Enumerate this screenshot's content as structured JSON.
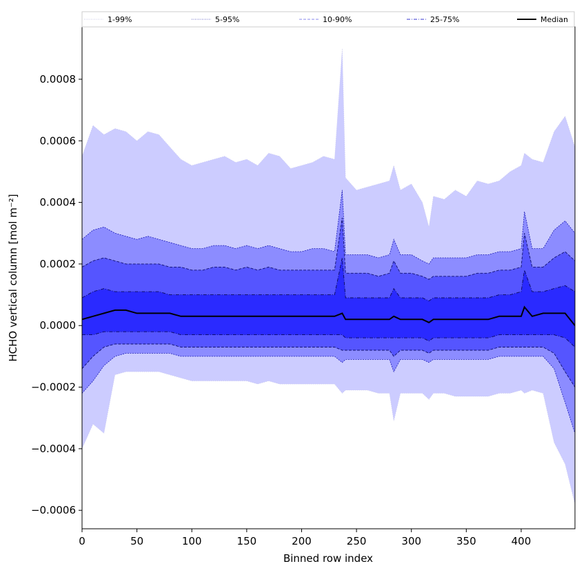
{
  "chart_data": {
    "type": "area",
    "title": "",
    "xlabel": "Binned row index",
    "ylabel": "HCHO vertical column [mol m⁻²]",
    "xlim": [
      0,
      449
    ],
    "ylim": [
      -0.00066,
      0.00097
    ],
    "xticks": [
      0,
      50,
      100,
      150,
      200,
      250,
      300,
      350,
      400
    ],
    "yticks": [
      -0.0006,
      -0.0004,
      -0.0002,
      0.0,
      0.0002,
      0.0004,
      0.0006,
      0.0008
    ],
    "ytick_labels": [
      "−0.0006",
      "−0.0004",
      "−0.0002",
      "0.0000",
      "0.0002",
      "0.0004",
      "0.0006",
      "0.0008"
    ],
    "grid": false,
    "legend_position": "top",
    "legend": [
      {
        "label": "1-99%",
        "style": "dotted",
        "color": "#c8c8e6"
      },
      {
        "label": "5-95%",
        "style": "dotted",
        "color": "#6a6ac8"
      },
      {
        "label": "10-90%",
        "style": "dashed",
        "color": "#8a8aee"
      },
      {
        "label": "25-75%",
        "style": "dashdot",
        "color": "#3a3ad0"
      },
      {
        "label": "Median",
        "style": "solid",
        "color": "#000000"
      }
    ],
    "band_colors": {
      "p1_99": "#ccccff",
      "p5_95": "#8c8cff",
      "p10_90": "#5555ff",
      "p25_75": "#2a2aff",
      "median": "#000000"
    },
    "x": [
      0,
      10,
      20,
      30,
      40,
      50,
      60,
      70,
      80,
      90,
      100,
      110,
      120,
      130,
      140,
      150,
      160,
      170,
      180,
      190,
      200,
      210,
      220,
      230,
      237,
      240,
      250,
      260,
      270,
      280,
      284,
      290,
      300,
      310,
      316,
      320,
      330,
      340,
      350,
      360,
      370,
      380,
      390,
      400,
      403,
      410,
      420,
      430,
      440,
      449
    ],
    "series": [
      {
        "name": "1-99%",
        "band": "upper",
        "values": [
          0.00055,
          0.00065,
          0.00062,
          0.00064,
          0.00063,
          0.0006,
          0.00063,
          0.00062,
          0.00058,
          0.00054,
          0.00052,
          0.00053,
          0.00054,
          0.00055,
          0.00053,
          0.00054,
          0.00052,
          0.00056,
          0.00055,
          0.00051,
          0.00052,
          0.00053,
          0.00055,
          0.00054,
          0.0009,
          0.00048,
          0.00044,
          0.00045,
          0.00046,
          0.00047,
          0.00052,
          0.00044,
          0.00046,
          0.0004,
          0.00032,
          0.00042,
          0.00041,
          0.00044,
          0.00042,
          0.00047,
          0.00046,
          0.00047,
          0.0005,
          0.00052,
          0.00056,
          0.00054,
          0.00053,
          0.00063,
          0.00068,
          0.00058
        ]
      },
      {
        "name": "5-95%",
        "band": "upper",
        "values": [
          0.00028,
          0.00031,
          0.00032,
          0.0003,
          0.00029,
          0.00028,
          0.00029,
          0.00028,
          0.00027,
          0.00026,
          0.00025,
          0.00025,
          0.00026,
          0.00026,
          0.00025,
          0.00026,
          0.00025,
          0.00026,
          0.00025,
          0.00024,
          0.00024,
          0.00025,
          0.00025,
          0.00024,
          0.00044,
          0.00023,
          0.00023,
          0.00023,
          0.00022,
          0.00023,
          0.00028,
          0.00023,
          0.00023,
          0.00021,
          0.0002,
          0.00022,
          0.00022,
          0.00022,
          0.00022,
          0.00023,
          0.00023,
          0.00024,
          0.00024,
          0.00025,
          0.00037,
          0.00025,
          0.00025,
          0.00031,
          0.00034,
          0.0003
        ]
      },
      {
        "name": "10-90%",
        "band": "upper",
        "values": [
          0.00019,
          0.00021,
          0.00022,
          0.00021,
          0.0002,
          0.0002,
          0.0002,
          0.0002,
          0.00019,
          0.00019,
          0.00018,
          0.00018,
          0.00019,
          0.00019,
          0.00018,
          0.00019,
          0.00018,
          0.00019,
          0.00018,
          0.00018,
          0.00018,
          0.00018,
          0.00018,
          0.00018,
          0.00035,
          0.00017,
          0.00017,
          0.00017,
          0.00016,
          0.00017,
          0.00021,
          0.00017,
          0.00017,
          0.00016,
          0.00015,
          0.00016,
          0.00016,
          0.00016,
          0.00016,
          0.00017,
          0.00017,
          0.00018,
          0.00018,
          0.00019,
          0.0003,
          0.00019,
          0.00019,
          0.00022,
          0.00024,
          0.00021
        ]
      },
      {
        "name": "25-75%",
        "band": "upper",
        "values": [
          9e-05,
          0.00011,
          0.00012,
          0.00011,
          0.00011,
          0.00011,
          0.00011,
          0.00011,
          0.0001,
          0.0001,
          0.0001,
          0.0001,
          0.0001,
          0.0001,
          0.0001,
          0.0001,
          0.0001,
          0.0001,
          0.0001,
          0.0001,
          0.0001,
          0.0001,
          0.0001,
          0.0001,
          0.00022,
          9e-05,
          9e-05,
          9e-05,
          9e-05,
          9e-05,
          0.00012,
          9e-05,
          9e-05,
          9e-05,
          8e-05,
          9e-05,
          9e-05,
          9e-05,
          9e-05,
          9e-05,
          9e-05,
          0.0001,
          0.0001,
          0.00011,
          0.00018,
          0.00011,
          0.00011,
          0.00012,
          0.00013,
          0.00011
        ]
      },
      {
        "name": "Median",
        "band": "median",
        "values": [
          2e-05,
          3e-05,
          4e-05,
          5e-05,
          5e-05,
          4e-05,
          4e-05,
          4e-05,
          4e-05,
          3e-05,
          3e-05,
          3e-05,
          3e-05,
          3e-05,
          3e-05,
          3e-05,
          3e-05,
          3e-05,
          3e-05,
          3e-05,
          3e-05,
          3e-05,
          3e-05,
          3e-05,
          4e-05,
          2e-05,
          2e-05,
          2e-05,
          2e-05,
          2e-05,
          3e-05,
          2e-05,
          2e-05,
          2e-05,
          1e-05,
          2e-05,
          2e-05,
          2e-05,
          2e-05,
          2e-05,
          2e-05,
          3e-05,
          3e-05,
          3e-05,
          6e-05,
          3e-05,
          4e-05,
          4e-05,
          4e-05,
          0.0
        ]
      },
      {
        "name": "25-75%",
        "band": "lower",
        "values": [
          -3e-05,
          -3e-05,
          -2e-05,
          -2e-05,
          -2e-05,
          -2e-05,
          -2e-05,
          -2e-05,
          -2e-05,
          -3e-05,
          -3e-05,
          -3e-05,
          -3e-05,
          -3e-05,
          -3e-05,
          -3e-05,
          -3e-05,
          -3e-05,
          -3e-05,
          -3e-05,
          -3e-05,
          -3e-05,
          -3e-05,
          -3e-05,
          -3e-05,
          -4e-05,
          -4e-05,
          -4e-05,
          -4e-05,
          -4e-05,
          -4e-05,
          -4e-05,
          -4e-05,
          -4e-05,
          -5e-05,
          -4e-05,
          -4e-05,
          -4e-05,
          -4e-05,
          -4e-05,
          -4e-05,
          -3e-05,
          -3e-05,
          -3e-05,
          -3e-05,
          -3e-05,
          -3e-05,
          -3e-05,
          -4e-05,
          -7e-05
        ]
      },
      {
        "name": "10-90%",
        "band": "lower",
        "values": [
          -0.00014,
          -0.0001,
          -7e-05,
          -6e-05,
          -6e-05,
          -6e-05,
          -6e-05,
          -6e-05,
          -6e-05,
          -7e-05,
          -7e-05,
          -7e-05,
          -7e-05,
          -7e-05,
          -7e-05,
          -7e-05,
          -7e-05,
          -7e-05,
          -7e-05,
          -7e-05,
          -7e-05,
          -7e-05,
          -7e-05,
          -7e-05,
          -8e-05,
          -8e-05,
          -8e-05,
          -8e-05,
          -8e-05,
          -8e-05,
          -0.0001,
          -8e-05,
          -8e-05,
          -8e-05,
          -9e-05,
          -8e-05,
          -8e-05,
          -8e-05,
          -8e-05,
          -8e-05,
          -8e-05,
          -7e-05,
          -7e-05,
          -7e-05,
          -7e-05,
          -7e-05,
          -7e-05,
          -9e-05,
          -0.00015,
          -0.0002
        ]
      },
      {
        "name": "5-95%",
        "band": "lower",
        "values": [
          -0.00022,
          -0.00018,
          -0.00013,
          -0.0001,
          -9e-05,
          -9e-05,
          -9e-05,
          -9e-05,
          -9e-05,
          -0.0001,
          -0.0001,
          -0.0001,
          -0.0001,
          -0.0001,
          -0.0001,
          -0.0001,
          -0.0001,
          -0.0001,
          -0.0001,
          -0.0001,
          -0.0001,
          -0.0001,
          -0.0001,
          -0.0001,
          -0.00012,
          -0.00011,
          -0.00011,
          -0.00011,
          -0.00011,
          -0.00011,
          -0.00015,
          -0.00011,
          -0.00011,
          -0.00011,
          -0.00012,
          -0.00011,
          -0.00011,
          -0.00011,
          -0.00011,
          -0.00011,
          -0.00011,
          -0.0001,
          -0.0001,
          -0.0001,
          -0.0001,
          -0.0001,
          -0.0001,
          -0.00014,
          -0.00025,
          -0.00035
        ]
      },
      {
        "name": "1-99%",
        "band": "lower",
        "values": [
          -0.0004,
          -0.00032,
          -0.00035,
          -0.00016,
          -0.00015,
          -0.00015,
          -0.00015,
          -0.00015,
          -0.00016,
          -0.00017,
          -0.00018,
          -0.00018,
          -0.00018,
          -0.00018,
          -0.00018,
          -0.00018,
          -0.00019,
          -0.00018,
          -0.00019,
          -0.00019,
          -0.00019,
          -0.00019,
          -0.00019,
          -0.00019,
          -0.00022,
          -0.00021,
          -0.00021,
          -0.00021,
          -0.00022,
          -0.00022,
          -0.00031,
          -0.00022,
          -0.00022,
          -0.00022,
          -0.00024,
          -0.00022,
          -0.00022,
          -0.00023,
          -0.00023,
          -0.00023,
          -0.00023,
          -0.00022,
          -0.00022,
          -0.00021,
          -0.00022,
          -0.00021,
          -0.00022,
          -0.00038,
          -0.00045,
          -0.00058
        ]
      }
    ]
  }
}
